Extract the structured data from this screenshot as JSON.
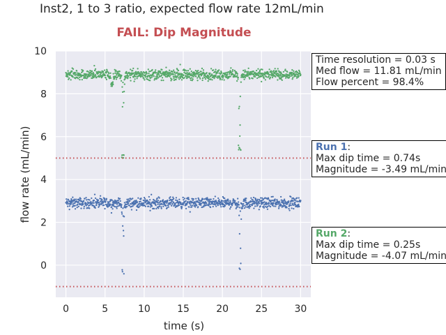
{
  "figure": {
    "suptitle": "Inst2, 1 to 3 ratio, expected flow rate 12mL/min",
    "status_text": "FAIL: Dip Magnitude",
    "status_color": "#c44e52"
  },
  "info_box": {
    "lines": [
      "Time resolution = 0.03 s",
      "Med flow = 11.81 mL/min",
      "Flow percent = 98.4%"
    ]
  },
  "run1_box": {
    "title": "Run 1",
    "title_suffix": ":",
    "color": "#4c72b0",
    "lines": [
      "Max dip time = 0.74s",
      "Magnitude = -3.49 mL/min"
    ]
  },
  "run2_box": {
    "title": "Run 2",
    "title_suffix": ":",
    "color": "#55a868",
    "lines": [
      "Max dip time = 0.25s",
      "Magnitude = -4.07 mL/min"
    ]
  },
  "chart_data": {
    "type": "scatter",
    "xlabel": "time (s)",
    "ylabel": "flow rate (mL/min)",
    "xlim": [
      -1.3,
      31.3
    ],
    "ylim": [
      -1.5,
      10
    ],
    "xticks": [
      0,
      5,
      10,
      15,
      20,
      25,
      30
    ],
    "yticks": [
      0,
      2,
      4,
      6,
      8,
      10
    ],
    "grid": true,
    "background": "#eaeaf2",
    "time_resolution_s": 0.03,
    "x_range": [
      0,
      30
    ],
    "series": [
      {
        "color": "#4c72b0",
        "baseline": 2.9,
        "noise": 0.12,
        "dips": [
          {
            "x": 7.3,
            "y_min": -0.4
          },
          {
            "x": 22.3,
            "y_min": -0.2
          }
        ]
      },
      {
        "color": "#55a868",
        "baseline": 8.9,
        "noise": 0.12,
        "dips": [
          {
            "x": 5.9,
            "y_min": 8.2
          },
          {
            "x": 7.3,
            "y_min": 5.0
          },
          {
            "x": 22.2,
            "y_min": 5.3
          }
        ]
      }
    ],
    "threshold_lines": [
      {
        "y": 5.0,
        "color": "#c44e52",
        "style": "dotted"
      },
      {
        "y": -1.0,
        "color": "#c44e52",
        "style": "dotted"
      }
    ]
  }
}
